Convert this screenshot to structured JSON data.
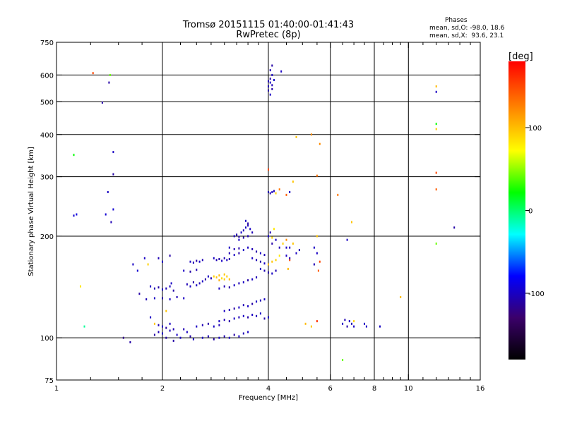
{
  "header": {
    "title_line1": "Tromsø 20151115 01:40:00-01:41:43",
    "title_line2": "RwPretec (8p)",
    "stats_title": "Phases",
    "stats_o": "mean, sd,O: -98.0, 18.6",
    "stats_x": "mean, sd,X:  93.6, 23.1"
  },
  "colorbar": {
    "unit": "[deg]",
    "tick_labels": [
      "100",
      "0",
      "-100"
    ],
    "tick_values": [
      100,
      0,
      -100
    ],
    "range": [
      -180,
      180
    ]
  },
  "chart_data": {
    "type": "scatter",
    "title": "Tromsø 20151115 01:40:00-01:41:43",
    "subtitle": "RwPretec (8p)",
    "xlabel": "Frequency [MHz]",
    "ylabel": "Stationary phase Virtual Height [km]",
    "xscale": "log",
    "yscale": "log",
    "xlim": [
      1,
      16
    ],
    "ylim": [
      75,
      750
    ],
    "x_ticks": [
      1,
      2,
      4,
      6,
      8,
      10,
      16
    ],
    "x_minor_ticks": [
      1.25,
      1.5,
      1.75,
      2.25,
      2.5,
      2.75,
      3,
      3.25,
      3.5,
      3.75,
      4.5,
      5,
      5.5,
      6.5,
      7,
      7.5,
      8.5,
      9,
      9.5,
      11,
      12,
      13,
      14,
      15
    ],
    "y_ticks": [
      75,
      100,
      200,
      300,
      400,
      500,
      600,
      750
    ],
    "x_gridlines": [
      2,
      4,
      6,
      8,
      10
    ],
    "y_gridlines": [
      100,
      200,
      300,
      400,
      500,
      600
    ],
    "color_encodes": "phase [deg]",
    "colormap": [
      "#000000",
      "#3b006a",
      "#0000ff",
      "#00ffff",
      "#00ff00",
      "#ffff00",
      "#ff8000",
      "#ff0000"
    ],
    "points": [
      [
        1.12,
        230,
        -95
      ],
      [
        1.14,
        232,
        -90
      ],
      [
        1.12,
        348,
        20
      ],
      [
        1.17,
        142,
        80
      ],
      [
        1.2,
        108,
        -10
      ],
      [
        1.27,
        608,
        150
      ],
      [
        1.35,
        497,
        -110
      ],
      [
        1.41,
        570,
        -110
      ],
      [
        1.42,
        600,
        40
      ],
      [
        1.45,
        355,
        -100
      ],
      [
        1.45,
        305,
        -110
      ],
      [
        1.4,
        270,
        -100
      ],
      [
        1.45,
        240,
        -95
      ],
      [
        1.43,
        220,
        -105
      ],
      [
        1.38,
        232,
        -95
      ],
      [
        1.55,
        100,
        -120
      ],
      [
        1.62,
        97,
        -110
      ],
      [
        1.65,
        165,
        -100
      ],
      [
        1.7,
        158,
        -95
      ],
      [
        1.72,
        135,
        -110
      ],
      [
        1.78,
        172,
        -100
      ],
      [
        1.82,
        165,
        90
      ],
      [
        1.85,
        115,
        -100
      ],
      [
        1.9,
        110,
        95
      ],
      [
        1.95,
        172,
        -105
      ],
      [
        2.0,
        168,
        -100
      ],
      [
        2.05,
        120,
        95
      ],
      [
        2.1,
        175,
        -110
      ],
      [
        2.12,
        145,
        -100
      ],
      [
        1.9,
        102,
        -110
      ],
      [
        1.95,
        104,
        -105
      ],
      [
        2.0,
        103,
        -100
      ],
      [
        2.05,
        100,
        -110
      ],
      [
        2.1,
        105,
        -105
      ],
      [
        2.15,
        98,
        -110
      ],
      [
        2.2,
        102,
        -100
      ],
      [
        2.25,
        100,
        -100
      ],
      [
        2.3,
        106,
        -105
      ],
      [
        2.35,
        104,
        -100
      ],
      [
        2.4,
        101,
        -110
      ],
      [
        2.45,
        99,
        -100
      ],
      [
        1.95,
        109,
        -105
      ],
      [
        2.0,
        108,
        -100
      ],
      [
        2.05,
        107,
        -110
      ],
      [
        2.1,
        110,
        -100
      ],
      [
        2.15,
        106,
        -105
      ],
      [
        1.85,
        142,
        -100
      ],
      [
        1.9,
        140,
        -105
      ],
      [
        1.95,
        141,
        -110
      ],
      [
        2.0,
        139,
        -100
      ],
      [
        2.05,
        140,
        -105
      ],
      [
        2.1,
        142,
        -100
      ],
      [
        2.15,
        138,
        -110
      ],
      [
        1.8,
        130,
        -105
      ],
      [
        1.9,
        131,
        -100
      ],
      [
        2.0,
        131,
        -110
      ],
      [
        2.1,
        130,
        -100
      ],
      [
        2.2,
        132,
        -105
      ],
      [
        2.3,
        131,
        -100
      ],
      [
        2.35,
        144,
        -105
      ],
      [
        2.4,
        142,
        -100
      ],
      [
        2.45,
        146,
        -110
      ],
      [
        2.5,
        143,
        -100
      ],
      [
        2.55,
        145,
        -105
      ],
      [
        2.6,
        147,
        -100
      ],
      [
        2.65,
        149,
        -110
      ],
      [
        2.7,
        152,
        -100
      ],
      [
        2.75,
        150,
        -105
      ],
      [
        2.4,
        168,
        -100
      ],
      [
        2.45,
        167,
        -105
      ],
      [
        2.5,
        169,
        -110
      ],
      [
        2.55,
        168,
        -100
      ],
      [
        2.6,
        170,
        -105
      ],
      [
        2.3,
        158,
        -100
      ],
      [
        2.4,
        157,
        -110
      ],
      [
        2.5,
        159,
        -105
      ],
      [
        2.8,
        172,
        -100
      ],
      [
        2.85,
        170,
        -105
      ],
      [
        2.9,
        171,
        -110
      ],
      [
        2.95,
        169,
        -100
      ],
      [
        3.0,
        172,
        -105
      ],
      [
        3.05,
        170,
        -100
      ],
      [
        3.1,
        171,
        -110
      ],
      [
        2.8,
        152,
        90
      ],
      [
        2.85,
        151,
        95
      ],
      [
        2.9,
        153,
        100
      ],
      [
        2.95,
        150,
        85
      ],
      [
        3.0,
        154,
        95
      ],
      [
        3.05,
        152,
        90
      ],
      [
        3.1,
        149,
        100
      ],
      [
        2.9,
        148,
        105
      ],
      [
        3.0,
        149,
        90
      ],
      [
        2.9,
        140,
        -100
      ],
      [
        3.0,
        142,
        -105
      ],
      [
        3.1,
        141,
        -110
      ],
      [
        3.2,
        143,
        -100
      ],
      [
        3.3,
        145,
        -105
      ],
      [
        3.4,
        146,
        -100
      ],
      [
        3.5,
        148,
        -110
      ],
      [
        3.6,
        149,
        -100
      ],
      [
        3.7,
        151,
        -105
      ],
      [
        3.0,
        120,
        -100
      ],
      [
        3.1,
        121,
        -105
      ],
      [
        3.2,
        122,
        -110
      ],
      [
        3.3,
        123,
        -100
      ],
      [
        3.4,
        125,
        -105
      ],
      [
        3.5,
        124,
        -100
      ],
      [
        3.6,
        126,
        -110
      ],
      [
        3.7,
        128,
        -100
      ],
      [
        3.8,
        129,
        -105
      ],
      [
        3.9,
        130,
        -100
      ],
      [
        2.9,
        112,
        -100
      ],
      [
        3.0,
        113,
        -105
      ],
      [
        3.1,
        112,
        -110
      ],
      [
        3.2,
        114,
        -100
      ],
      [
        3.3,
        115,
        -105
      ],
      [
        3.4,
        116,
        -100
      ],
      [
        3.5,
        115,
        -110
      ],
      [
        3.6,
        117,
        -100
      ],
      [
        3.7,
        116,
        -105
      ],
      [
        3.8,
        118,
        -100
      ],
      [
        3.9,
        114,
        -110
      ],
      [
        4.0,
        115,
        -100
      ],
      [
        2.6,
        100,
        -100
      ],
      [
        2.7,
        101,
        -105
      ],
      [
        2.8,
        99,
        -110
      ],
      [
        2.9,
        100,
        -100
      ],
      [
        3.0,
        101,
        -105
      ],
      [
        3.1,
        100,
        -100
      ],
      [
        3.2,
        102,
        -110
      ],
      [
        3.3,
        101,
        -100
      ],
      [
        3.4,
        103,
        -105
      ],
      [
        3.5,
        104,
        -100
      ],
      [
        2.5,
        108,
        -100
      ],
      [
        2.6,
        109,
        -105
      ],
      [
        2.7,
        110,
        -110
      ],
      [
        2.8,
        108,
        -100
      ],
      [
        2.9,
        109,
        -105
      ],
      [
        3.2,
        200,
        -100
      ],
      [
        3.25,
        202,
        -105
      ],
      [
        3.3,
        199,
        -110
      ],
      [
        3.35,
        205,
        -100
      ],
      [
        3.4,
        208,
        -105
      ],
      [
        3.45,
        212,
        -100
      ],
      [
        3.5,
        218,
        -110
      ],
      [
        3.45,
        222,
        -100
      ],
      [
        3.5,
        215,
        -105
      ],
      [
        3.55,
        210,
        -100
      ],
      [
        3.6,
        205,
        -105
      ],
      [
        3.3,
        195,
        -100
      ],
      [
        3.4,
        198,
        -110
      ],
      [
        3.5,
        200,
        -105
      ],
      [
        3.5,
        185,
        -100
      ],
      [
        3.6,
        183,
        -105
      ],
      [
        3.7,
        180,
        -110
      ],
      [
        3.8,
        178,
        -100
      ],
      [
        3.9,
        176,
        -105
      ],
      [
        3.6,
        172,
        -100
      ],
      [
        3.7,
        170,
        -105
      ],
      [
        3.8,
        168,
        -110
      ],
      [
        3.9,
        166,
        -100
      ],
      [
        3.1,
        185,
        -100
      ],
      [
        3.2,
        183,
        -105
      ],
      [
        3.3,
        184,
        -110
      ],
      [
        3.4,
        182,
        -100
      ],
      [
        3.1,
        178,
        -105
      ],
      [
        3.2,
        176,
        -100
      ],
      [
        3.3,
        178,
        -110
      ],
      [
        3.8,
        160,
        -100
      ],
      [
        3.9,
        158,
        -105
      ],
      [
        4.0,
        156,
        -110
      ],
      [
        4.1,
        155,
        -100
      ],
      [
        4.2,
        158,
        -105
      ],
      [
        4.0,
        165,
        100
      ],
      [
        4.1,
        168,
        95
      ],
      [
        4.2,
        170,
        90
      ],
      [
        4.3,
        175,
        80
      ],
      [
        4.0,
        200,
        -100
      ],
      [
        4.05,
        205,
        -105
      ],
      [
        4.1,
        198,
        90
      ],
      [
        4.15,
        210,
        80
      ],
      [
        4.1,
        190,
        -110
      ],
      [
        4.2,
        195,
        -100
      ],
      [
        4.3,
        185,
        -105
      ],
      [
        4.4,
        190,
        90
      ],
      [
        4.5,
        175,
        -100
      ],
      [
        4.6,
        185,
        -105
      ],
      [
        4.7,
        190,
        95
      ],
      [
        4.8,
        178,
        -100
      ],
      [
        4.9,
        182,
        -105
      ],
      [
        4.5,
        195,
        120
      ],
      [
        4.6,
        170,
        150
      ],
      [
        4.0,
        270,
        -110
      ],
      [
        4.05,
        268,
        -105
      ],
      [
        4.1,
        270,
        -100
      ],
      [
        4.15,
        272,
        -105
      ],
      [
        4.2,
        268,
        90
      ],
      [
        4.3,
        275,
        130
      ],
      [
        4.5,
        265,
        140
      ],
      [
        4.6,
        270,
        -100
      ],
      [
        4.7,
        290,
        95
      ],
      [
        4.0,
        315,
        150
      ],
      [
        4.0,
        540,
        -110
      ],
      [
        4.0,
        555,
        -105
      ],
      [
        4.05,
        570,
        -100
      ],
      [
        4.05,
        585,
        -110
      ],
      [
        4.1,
        560,
        -105
      ],
      [
        4.1,
        600,
        -100
      ],
      [
        4.05,
        620,
        -105
      ],
      [
        4.1,
        640,
        -110
      ],
      [
        4.05,
        525,
        -100
      ],
      [
        4.0,
        575,
        -105
      ],
      [
        4.15,
        580,
        -100
      ],
      [
        4.1,
        545,
        -110
      ],
      [
        4.35,
        615,
        -100
      ],
      [
        4.5,
        185,
        -100
      ],
      [
        4.55,
        160,
        100
      ],
      [
        4.6,
        172,
        -105
      ],
      [
        4.8,
        393,
        95
      ],
      [
        5.3,
        400,
        120
      ],
      [
        5.5,
        302,
        130
      ],
      [
        5.5,
        200,
        95
      ],
      [
        5.4,
        185,
        -100
      ],
      [
        5.5,
        178,
        -100
      ],
      [
        5.6,
        168,
        150
      ],
      [
        5.55,
        158,
        140
      ],
      [
        5.4,
        165,
        -105
      ],
      [
        5.1,
        110,
        100
      ],
      [
        5.5,
        112,
        160
      ],
      [
        5.3,
        108,
        95
      ],
      [
        5.6,
        375,
        120
      ],
      [
        6.3,
        265,
        130
      ],
      [
        6.5,
        110,
        -100
      ],
      [
        6.6,
        113,
        -105
      ],
      [
        6.7,
        108,
        -110
      ],
      [
        6.8,
        112,
        -100
      ],
      [
        6.9,
        110,
        -105
      ],
      [
        7.0,
        108,
        -100
      ],
      [
        6.7,
        195,
        -100
      ],
      [
        6.9,
        220,
        95
      ],
      [
        6.5,
        86,
        40
      ],
      [
        7.0,
        112,
        90
      ],
      [
        7.5,
        110,
        -100
      ],
      [
        7.6,
        108,
        -100
      ],
      [
        8.3,
        108,
        -100
      ],
      [
        9.5,
        132,
        100
      ],
      [
        12.0,
        555,
        100
      ],
      [
        12.0,
        535,
        -100
      ],
      [
        12.0,
        430,
        20
      ],
      [
        12.0,
        415,
        95
      ],
      [
        12.0,
        308,
        150
      ],
      [
        12.0,
        275,
        140
      ],
      [
        12.0,
        190,
        40
      ],
      [
        13.5,
        212,
        -110
      ]
    ]
  }
}
